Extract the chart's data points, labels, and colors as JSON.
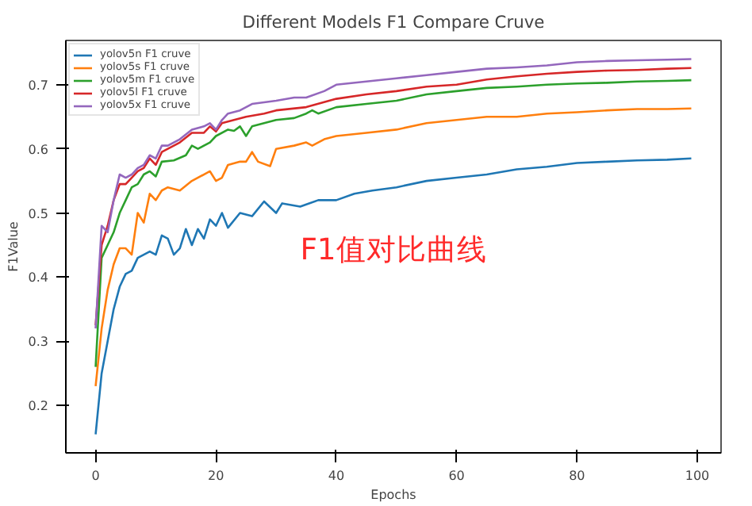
{
  "chart_data": {
    "type": "line",
    "title": "Different Models F1 Compare Cruve",
    "xlabel": "Epochs",
    "ylabel": "F1Value",
    "xlim": [
      -4.95,
      103.95
    ],
    "ylim": [
      0.126,
      0.769
    ],
    "xticks": [
      0,
      20,
      40,
      60,
      80,
      100
    ],
    "yticks": [
      0.2,
      0.3,
      0.4,
      0.5,
      0.6,
      0.7
    ],
    "grid": false,
    "legend": "top left",
    "marker": "none",
    "line_style": "solid",
    "annotations": [
      "F1值对比曲线"
    ],
    "series": [
      {
        "name": "yolov5n F1 cruve",
        "color": "#1f77b4",
        "x": [
          0,
          1,
          2,
          3,
          4,
          5,
          6,
          7,
          8,
          9,
          10,
          11,
          12,
          13,
          14,
          15,
          16,
          17,
          18,
          19,
          20,
          21,
          22,
          24,
          26,
          28,
          30,
          31,
          34,
          37,
          40,
          43,
          46,
          50,
          55,
          60,
          65,
          70,
          75,
          80,
          85,
          90,
          95,
          99
        ],
        "values": [
          0.155,
          0.25,
          0.3,
          0.35,
          0.385,
          0.405,
          0.41,
          0.43,
          0.435,
          0.44,
          0.435,
          0.465,
          0.46,
          0.435,
          0.445,
          0.475,
          0.45,
          0.475,
          0.46,
          0.49,
          0.48,
          0.5,
          0.477,
          0.5,
          0.495,
          0.518,
          0.5,
          0.515,
          0.51,
          0.52,
          0.52,
          0.53,
          0.535,
          0.54,
          0.55,
          0.555,
          0.56,
          0.568,
          0.572,
          0.578,
          0.58,
          0.582,
          0.583,
          0.585
        ]
      },
      {
        "name": "yolov5s F1 cruve",
        "color": "#ff7f0e",
        "x": [
          0,
          1,
          2,
          3,
          4,
          5,
          6,
          7,
          8,
          9,
          10,
          11,
          12,
          14,
          16,
          19,
          20,
          21,
          22,
          24,
          25,
          26,
          27,
          29,
          30,
          33,
          35,
          36,
          38,
          40,
          45,
          50,
          55,
          60,
          65,
          70,
          75,
          80,
          85,
          90,
          95,
          99
        ],
        "values": [
          0.23,
          0.32,
          0.38,
          0.42,
          0.445,
          0.445,
          0.435,
          0.5,
          0.485,
          0.53,
          0.52,
          0.535,
          0.54,
          0.535,
          0.55,
          0.565,
          0.55,
          0.555,
          0.575,
          0.58,
          0.58,
          0.595,
          0.58,
          0.573,
          0.6,
          0.605,
          0.61,
          0.605,
          0.615,
          0.62,
          0.625,
          0.63,
          0.64,
          0.645,
          0.65,
          0.65,
          0.655,
          0.657,
          0.66,
          0.662,
          0.662,
          0.663
        ]
      },
      {
        "name": "yolov5m F1 cruve",
        "color": "#2ca02c",
        "x": [
          0,
          1,
          2,
          3,
          4,
          5,
          6,
          7,
          8,
          9,
          10,
          11,
          13,
          15,
          16,
          17,
          19,
          20,
          22,
          23,
          24,
          25,
          26,
          28,
          30,
          33,
          35,
          36,
          37,
          40,
          45,
          50,
          55,
          60,
          65,
          70,
          75,
          80,
          85,
          90,
          95,
          99
        ],
        "values": [
          0.26,
          0.43,
          0.45,
          0.47,
          0.5,
          0.52,
          0.54,
          0.545,
          0.56,
          0.565,
          0.557,
          0.58,
          0.582,
          0.59,
          0.605,
          0.6,
          0.61,
          0.62,
          0.63,
          0.628,
          0.635,
          0.62,
          0.635,
          0.64,
          0.645,
          0.648,
          0.655,
          0.66,
          0.655,
          0.665,
          0.67,
          0.675,
          0.685,
          0.69,
          0.695,
          0.697,
          0.7,
          0.702,
          0.703,
          0.705,
          0.706,
          0.707
        ]
      },
      {
        "name": "yolov5l F1 cruve",
        "color": "#d62728",
        "x": [
          0,
          1,
          2,
          3,
          4,
          5,
          6,
          7,
          8,
          9,
          10,
          11,
          12,
          14,
          16,
          18,
          19,
          20,
          21,
          23,
          25,
          28,
          30,
          35,
          40,
          45,
          50,
          55,
          60,
          65,
          70,
          75,
          80,
          85,
          90,
          95,
          99
        ],
        "values": [
          0.325,
          0.45,
          0.48,
          0.52,
          0.545,
          0.545,
          0.555,
          0.565,
          0.57,
          0.585,
          0.575,
          0.595,
          0.6,
          0.61,
          0.625,
          0.625,
          0.635,
          0.627,
          0.64,
          0.645,
          0.65,
          0.655,
          0.66,
          0.665,
          0.678,
          0.685,
          0.69,
          0.697,
          0.7,
          0.708,
          0.713,
          0.717,
          0.72,
          0.722,
          0.723,
          0.725,
          0.726
        ]
      },
      {
        "name": "yolov5x F1 cruve",
        "color": "#9467bd",
        "x": [
          0,
          1,
          2,
          3,
          4,
          5,
          6,
          7,
          8,
          9,
          10,
          11,
          12,
          14,
          16,
          18,
          19,
          20,
          21,
          22,
          24,
          26,
          30,
          33,
          35,
          38,
          40,
          45,
          50,
          55,
          60,
          65,
          70,
          75,
          80,
          85,
          90,
          95,
          99
        ],
        "values": [
          0.32,
          0.48,
          0.47,
          0.52,
          0.56,
          0.555,
          0.56,
          0.57,
          0.575,
          0.59,
          0.585,
          0.605,
          0.605,
          0.615,
          0.63,
          0.635,
          0.64,
          0.63,
          0.645,
          0.655,
          0.66,
          0.67,
          0.675,
          0.68,
          0.68,
          0.69,
          0.7,
          0.705,
          0.71,
          0.715,
          0.72,
          0.725,
          0.727,
          0.73,
          0.735,
          0.737,
          0.738,
          0.739,
          0.74
        ]
      }
    ]
  }
}
